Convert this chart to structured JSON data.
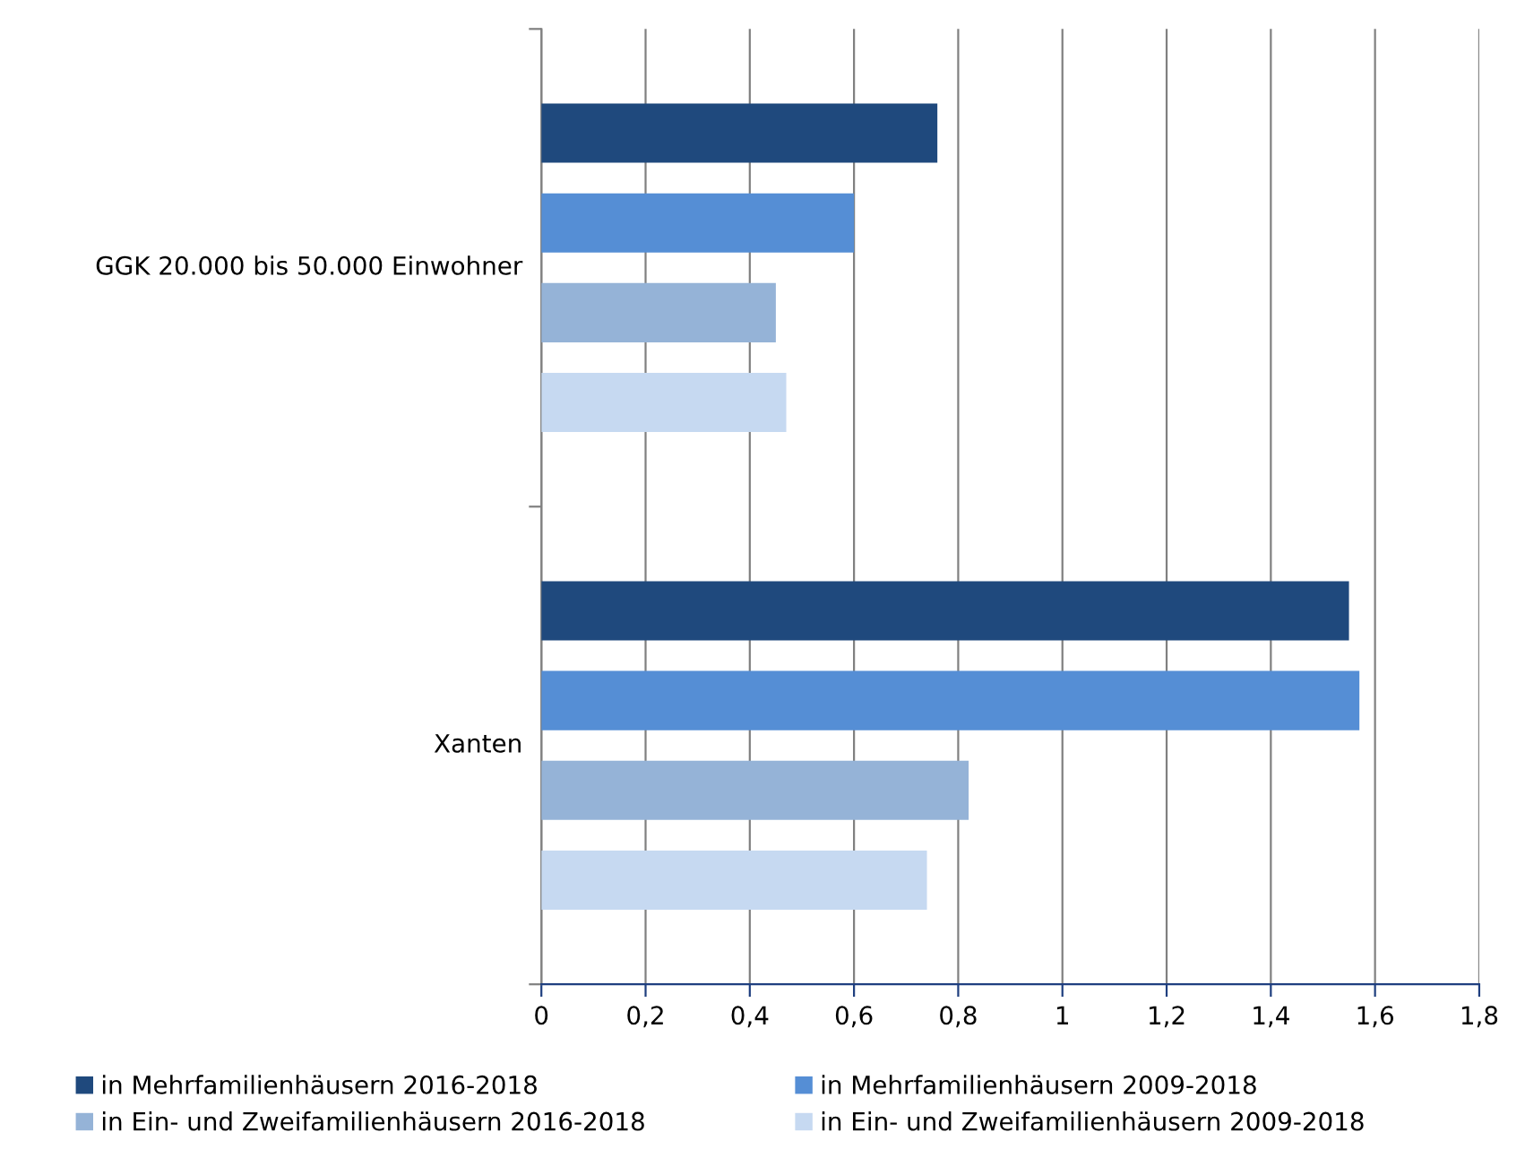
{
  "chart_data": {
    "type": "bar",
    "orientation": "horizontal",
    "categories": [
      "GGK 20.000 bis 50.000 Einwohner",
      "Xanten"
    ],
    "series": [
      {
        "name": "in Mehrfamilienhäusern 2016-2018",
        "color": "#1f497d",
        "values": [
          0.76,
          1.55
        ]
      },
      {
        "name": "in Mehrfamilienhäusern 2009-2018",
        "color": "#558ed5",
        "values": [
          0.6,
          1.57
        ]
      },
      {
        "name": "in Ein- und Zweifamilienhäusern 2016-2018",
        "color": "#95b3d7",
        "values": [
          0.45,
          0.82
        ]
      },
      {
        "name": "in Ein- und Zweifamilienhäusern 2009-2018",
        "color": "#c6d9f1",
        "values": [
          0.47,
          0.74
        ]
      }
    ],
    "xlim": [
      0,
      1.8
    ],
    "xticks": [
      0,
      {
        "value": 0.2,
        "label": "0,2"
      },
      {
        "value": 0.4,
        "label": "0,4"
      },
      {
        "value": 0.6,
        "label": "0,6"
      },
      {
        "value": 0.8,
        "label": "0,8"
      },
      1,
      {
        "value": 1.2,
        "label": "1,2"
      },
      {
        "value": 1.4,
        "label": "1,4"
      },
      {
        "value": 1.6,
        "label": "1,6"
      },
      {
        "value": 1.8,
        "label": "1,8"
      }
    ],
    "grid": "x",
    "legend": "bottom"
  }
}
